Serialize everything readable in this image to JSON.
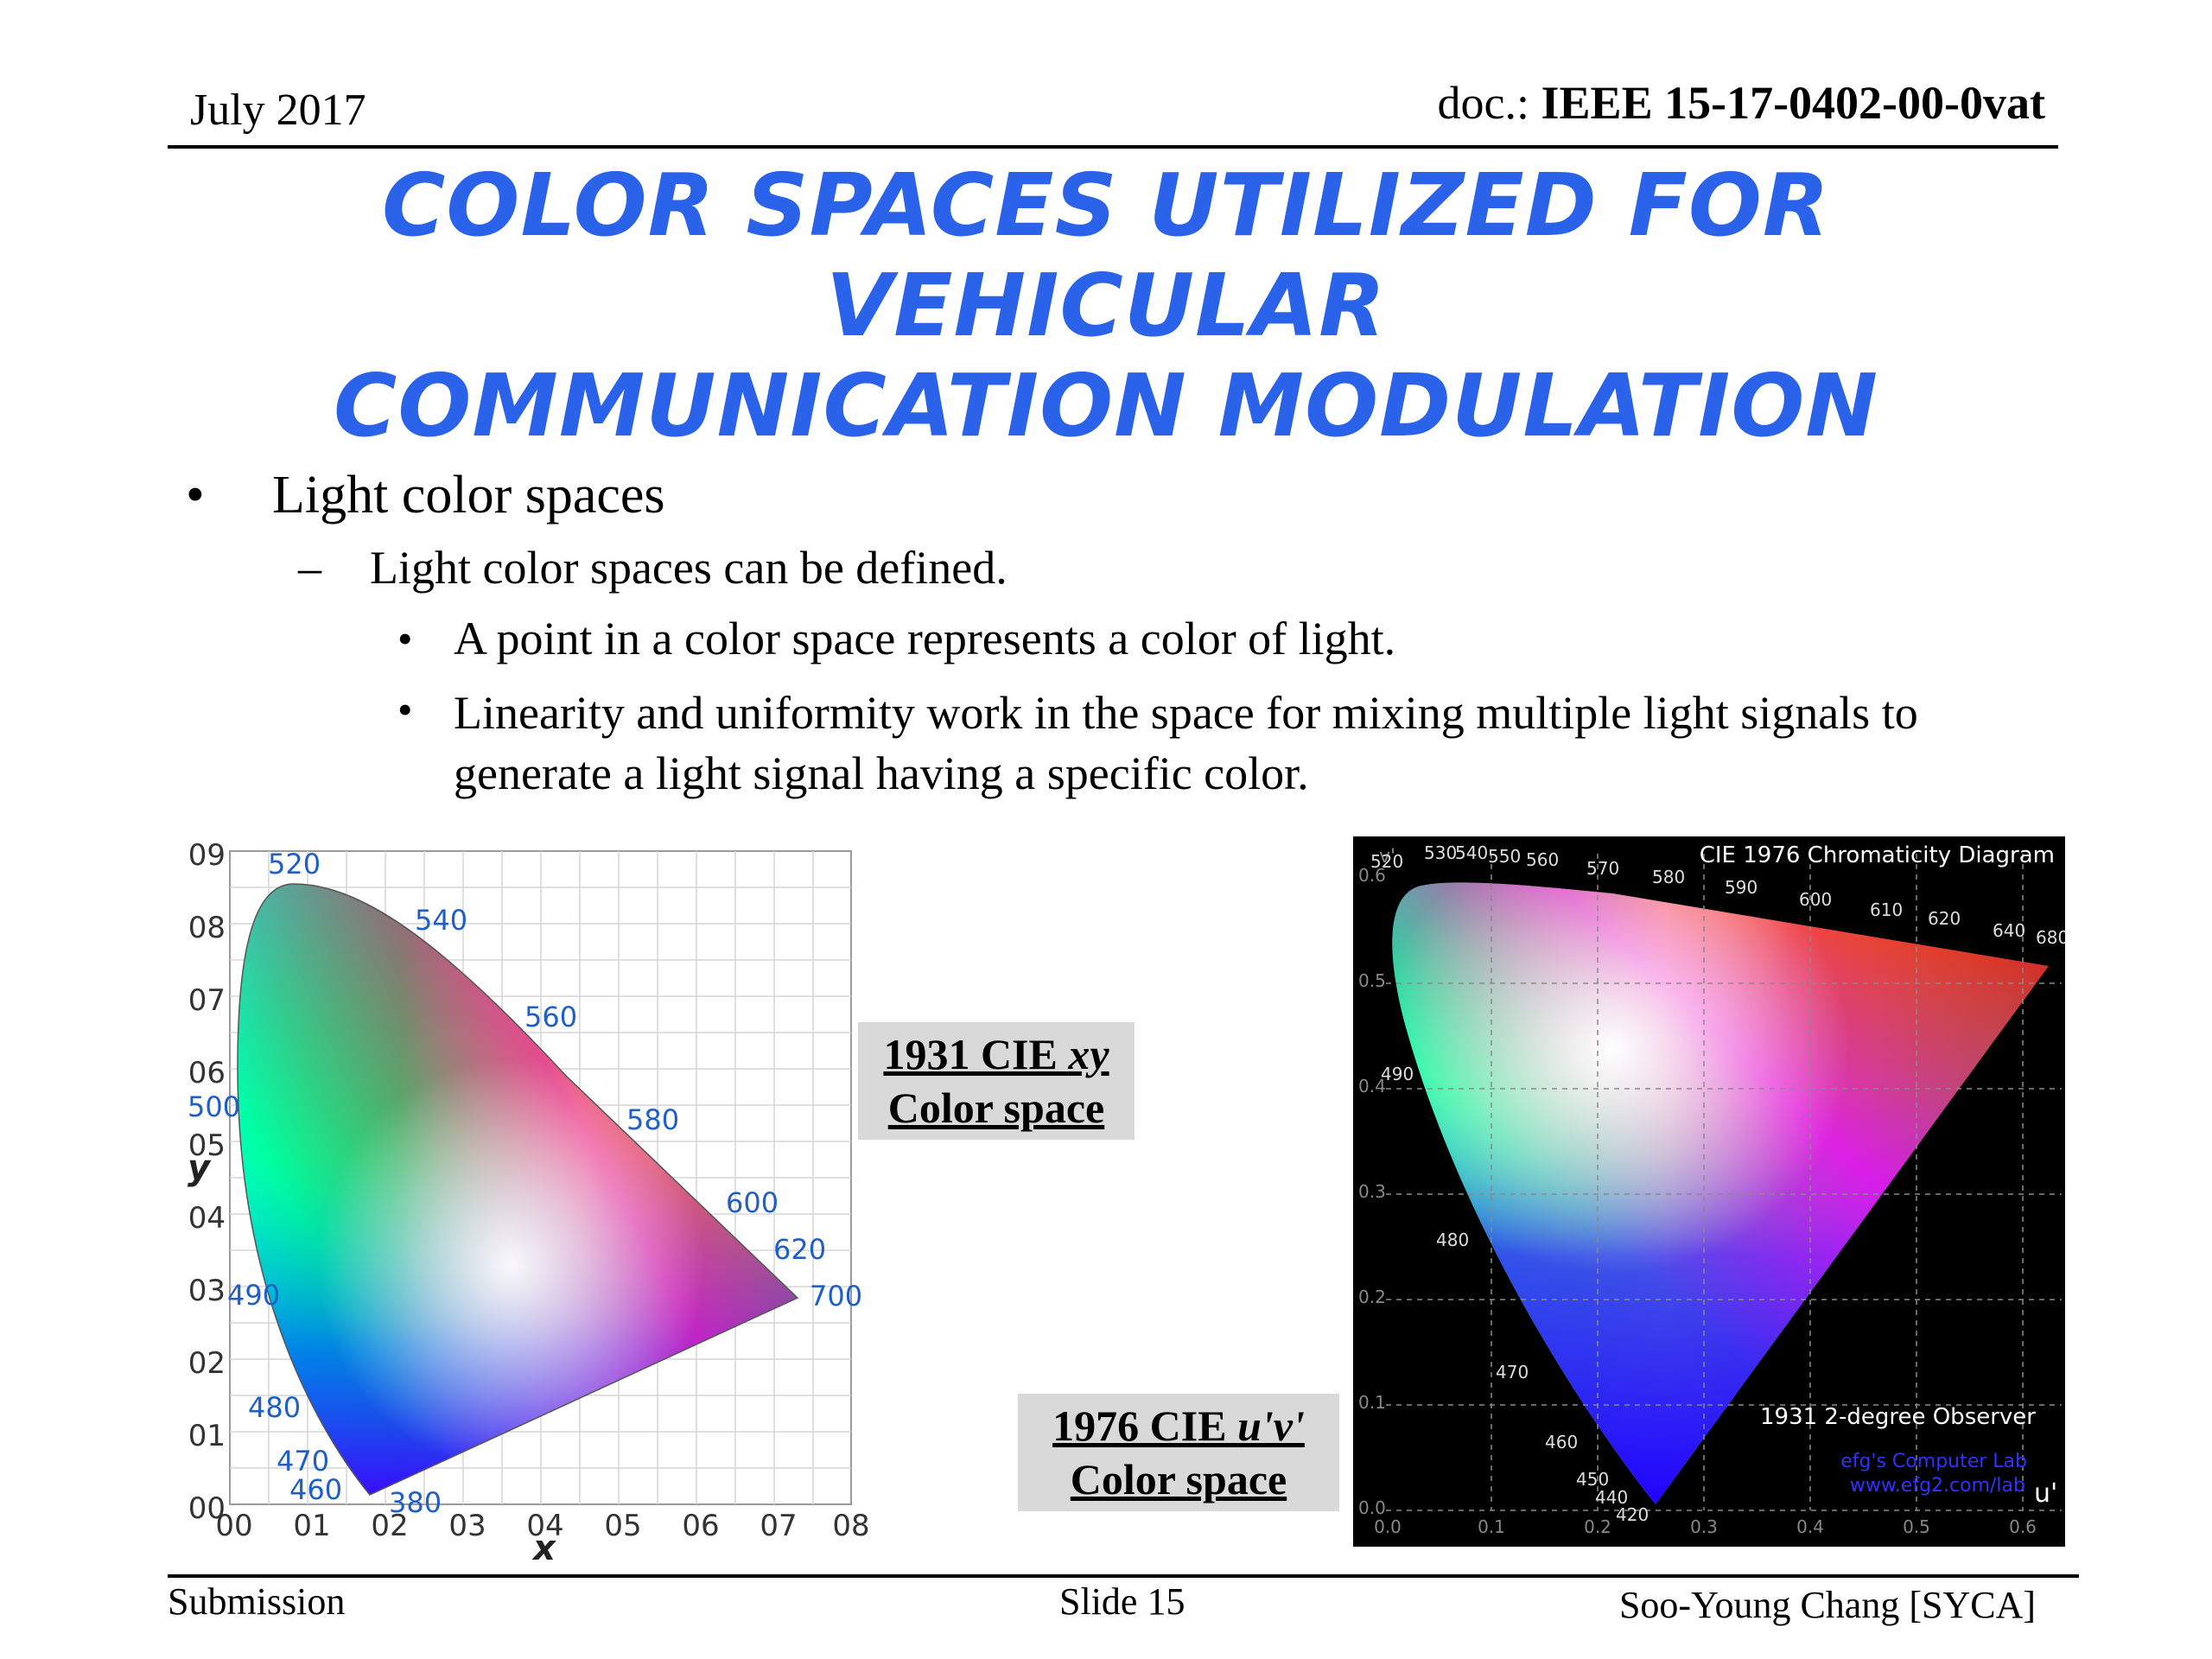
{
  "header": {
    "date": "July 2017",
    "doc_prefix": "doc.: ",
    "doc_id": "IEEE 15-17-0402-00-0vat"
  },
  "title": {
    "line1": "COLOR SPACES UTILIZED FOR VEHICULAR",
    "line2": "COMMUNICATION MODULATION"
  },
  "bullets": {
    "level1": "Light color spaces",
    "level2": "Light color spaces can be defined.",
    "level3": [
      "A point in a color space represents a color of light.",
      "Linearity and uniformity work in the space for mixing multiple light signals to generate a light signal having a specific color."
    ],
    "bullet_glyph": "•",
    "dash_glyph": "–"
  },
  "figure1": {
    "caption_line1_a": "1931 CIE ",
    "caption_line1_b": "xy",
    "caption_line2": "Color space",
    "x_axis_label": "x",
    "y_axis_label": "y",
    "x_ticks": [
      "00",
      "01",
      "02",
      "03",
      "04",
      "05",
      "06",
      "07",
      "08"
    ],
    "y_ticks": [
      "00",
      "01",
      "02",
      "03",
      "04",
      "05",
      "06",
      "07",
      "08",
      "09"
    ],
    "wavelength_labels": [
      "520",
      "540",
      "560",
      "580",
      "600",
      "620",
      "700",
      "500",
      "490",
      "480",
      "470",
      "460",
      "380"
    ]
  },
  "figure2": {
    "caption_line1_a": "1976 CIE ",
    "caption_line1_b": "u'v'",
    "caption_line2": "Color space",
    "title": "CIE 1976 Chromaticity Diagram",
    "observer": "1931 2-degree Observer",
    "watermark1": "efg's Computer Lab",
    "watermark2": "www.efg2.com/lab",
    "x_axis_label": "u'",
    "y_axis_label": "v'",
    "x_ticks": [
      "0.0",
      "0.1",
      "0.2",
      "0.3",
      "0.4",
      "0.5",
      "0.6"
    ],
    "y_ticks": [
      "0.0",
      "0.1",
      "0.2",
      "0.3",
      "0.4",
      "0.5",
      "0.6"
    ],
    "wavelength_labels": [
      "520",
      "530",
      "540",
      "550",
      "560",
      "570",
      "580",
      "590",
      "600",
      "610",
      "620",
      "640",
      "680",
      "490",
      "480",
      "470",
      "460",
      "450",
      "440",
      "420"
    ]
  },
  "footer": {
    "left": "Submission",
    "center": "Slide 15",
    "right": "Soo-Young Chang [SYCA]"
  },
  "colors": {
    "title": "#2a63ea",
    "caption_bg": "#d9d9d9",
    "wavelength_label_blue": "#1f5fc8"
  }
}
